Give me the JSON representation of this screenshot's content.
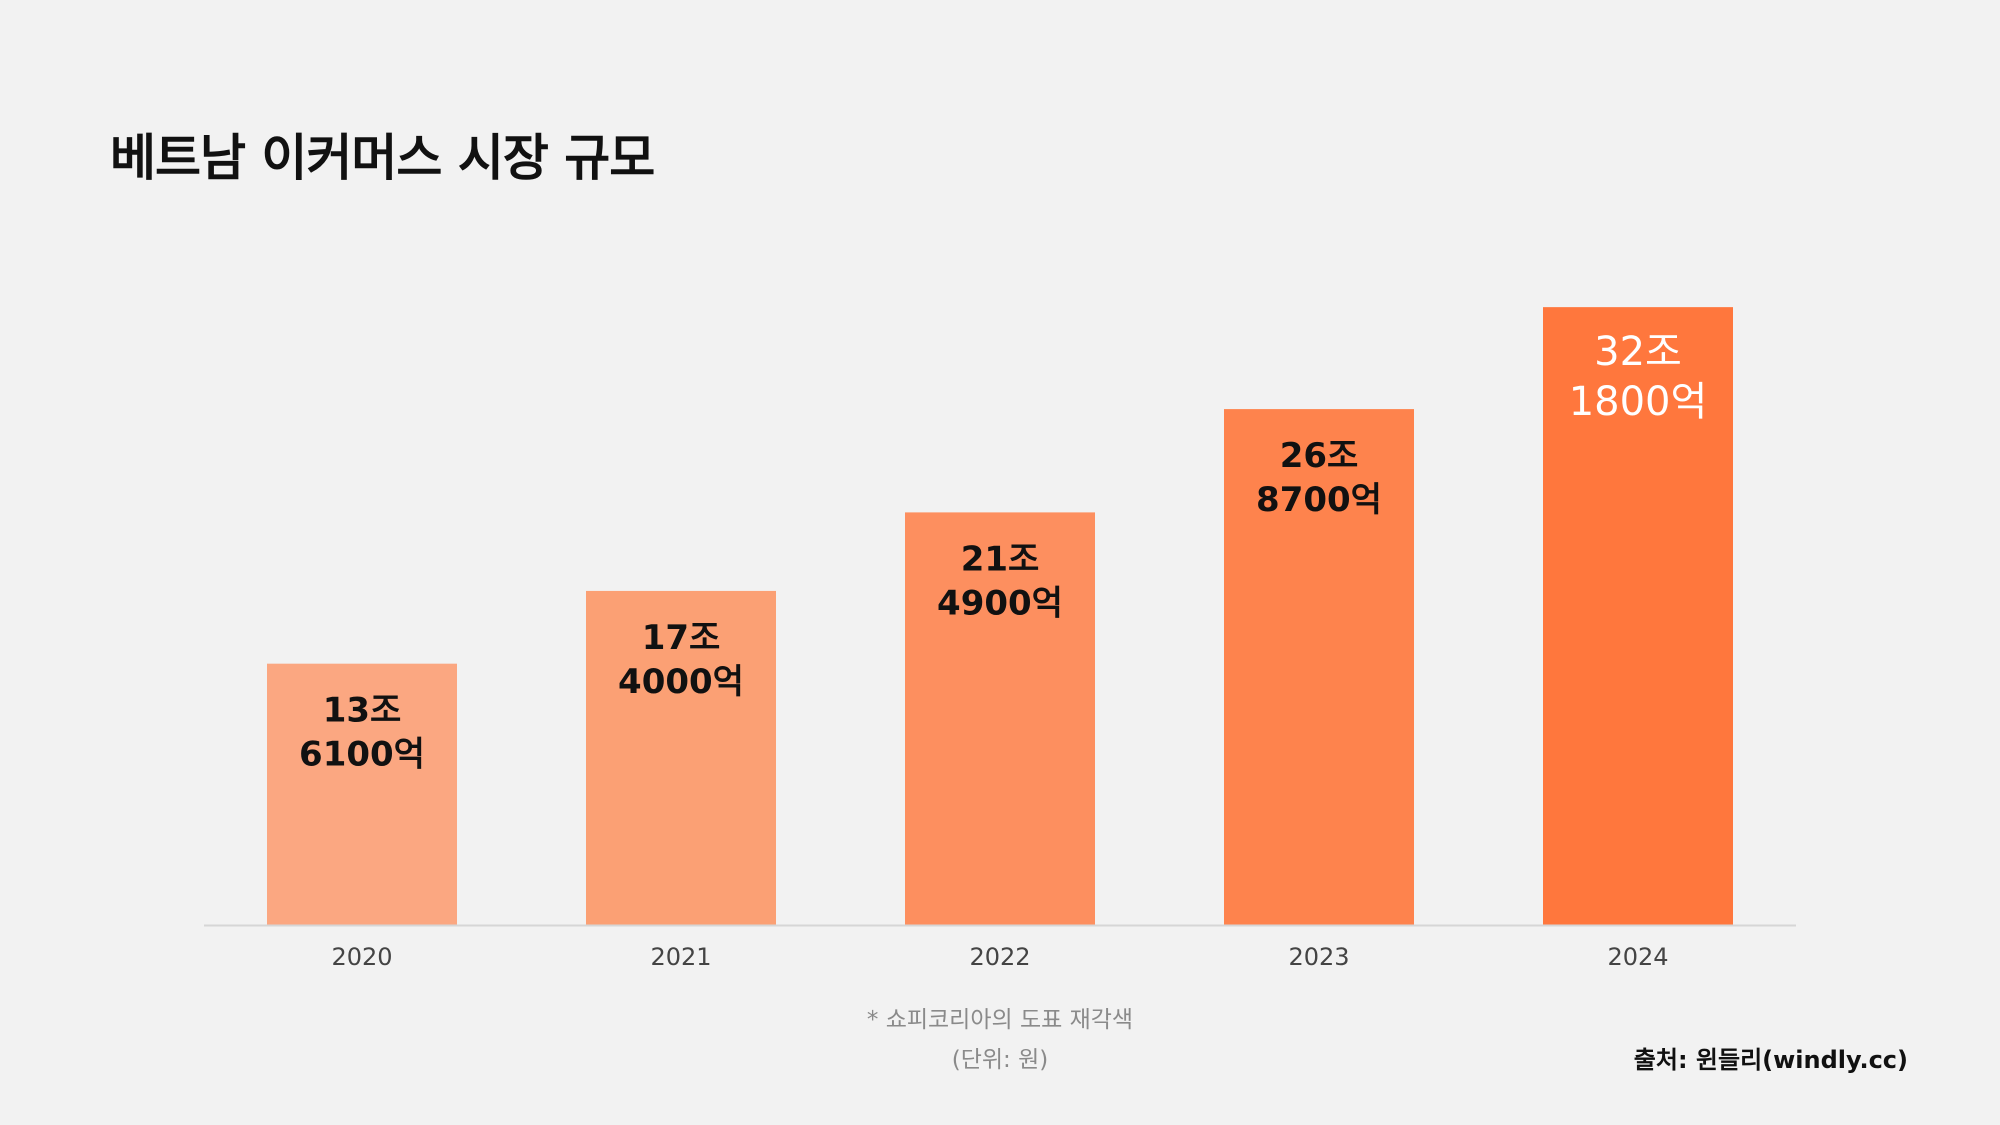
{
  "title": "베트남 이커머스 시장 규모",
  "notes": {
    "recolor": "* 쇼피코리아의 도표 재각색",
    "unit": "(단위: 원)"
  },
  "source": "출처: 윈들리(windly.cc)",
  "colors": {
    "background": "#f2f2f2",
    "bars": [
      "#fba781",
      "#fba074",
      "#fd8f5f",
      "#fe834d",
      "#ff773d"
    ],
    "baseline": "#d6d6d6",
    "label_dark": "#111111",
    "label_light": "#ffffff",
    "tick": "#444444"
  },
  "chart_data": {
    "type": "bar",
    "title": "베트남 이커머스 시장 규모",
    "xlabel": "",
    "ylabel": "",
    "unit": "원",
    "ylim": [
      0,
      35
    ],
    "grid": false,
    "legend": "none",
    "categories": [
      "2020",
      "2021",
      "2022",
      "2023",
      "2024"
    ],
    "values": [
      13.61,
      17.4,
      21.49,
      26.87,
      32.18
    ],
    "value_unit": "조 원",
    "data_labels": [
      [
        "13조",
        "6100억"
      ],
      [
        "17조",
        "4000억"
      ],
      [
        "21조",
        "4900억"
      ],
      [
        "26조",
        "8700억"
      ],
      [
        "32조",
        "1800억"
      ]
    ]
  }
}
